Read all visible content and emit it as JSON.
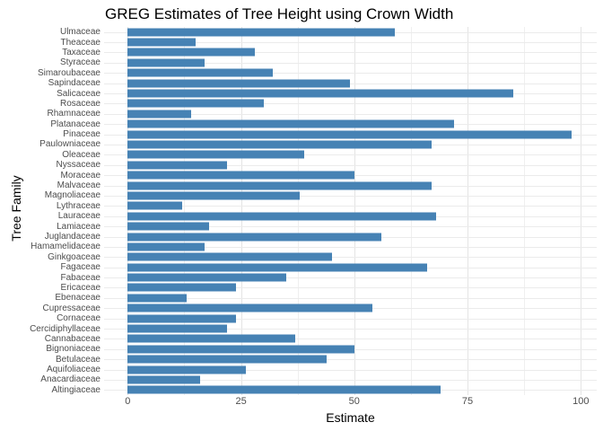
{
  "chart_data": {
    "type": "bar",
    "orientation": "horizontal",
    "title": "GREG Estimates of Tree Height using Crown Width",
    "xlabel": "Estimate",
    "ylabel": "Tree Family",
    "xlim": [
      0,
      100
    ],
    "x_ticks": [
      0,
      25,
      50,
      75,
      100
    ],
    "x_minor_tick_interval": 12.5,
    "grid": true,
    "legend": false,
    "bar_color": "#4682B4",
    "categories": [
      "Ulmaceae",
      "Theaceae",
      "Taxaceae",
      "Styraceae",
      "Simaroubaceae",
      "Sapindaceae",
      "Salicaceae",
      "Rosaceae",
      "Rhamnaceae",
      "Platanaceae",
      "Pinaceae",
      "Paulowniaceae",
      "Oleaceae",
      "Nyssaceae",
      "Moraceae",
      "Malvaceae",
      "Magnoliaceae",
      "Lythraceae",
      "Lauraceae",
      "Lamiaceae",
      "Juglandaceae",
      "Hamamelidaceae",
      "Ginkgoaceae",
      "Fagaceae",
      "Fabaceae",
      "Ericaceae",
      "Ebenaceae",
      "Cupressaceae",
      "Cornaceae",
      "Cercidiphyllaceae",
      "Cannabaceae",
      "Bignoniaceae",
      "Betulaceae",
      "Aquifoliaceae",
      "Anacardiaceae",
      "Altingiaceae"
    ],
    "values": [
      59,
      15,
      28,
      17,
      32,
      49,
      85,
      30,
      14,
      72,
      98,
      67,
      39,
      22,
      50,
      67,
      38,
      12,
      68,
      18,
      56,
      17,
      45,
      66,
      35,
      24,
      13,
      54,
      24,
      22,
      37,
      50,
      44,
      26,
      16,
      69
    ]
  },
  "colors": {
    "bar": "#4682B4",
    "grid_major": "#E4E4E4",
    "grid_minor": "#EFEFEF",
    "tick_text": "#4D4D4D",
    "text": "#000000",
    "background": "#FFFFFF"
  }
}
